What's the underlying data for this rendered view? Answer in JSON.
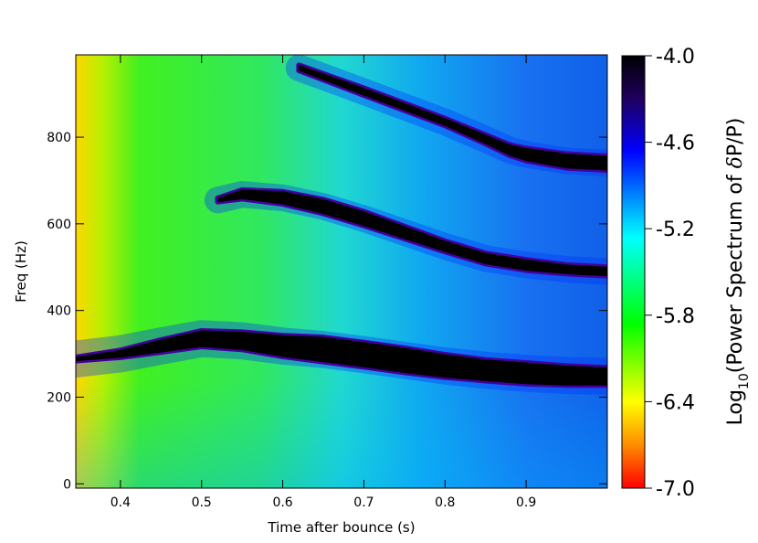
{
  "chart_data": {
    "type": "heatmap",
    "title": "",
    "xlabel": "Time after bounce (s)",
    "ylabel": "Freq (Hz)",
    "xlim": [
      0.345,
      1.0
    ],
    "ylim": [
      -10,
      990
    ],
    "x_ticks": [
      0.4,
      0.5,
      0.6,
      0.7,
      0.8,
      0.9
    ],
    "x_tick_labels": [
      "0.4",
      "0.5",
      "0.6",
      "0.7",
      "0.8",
      "0.9"
    ],
    "y_ticks": [
      0,
      200,
      400,
      600,
      800
    ],
    "y_tick_labels": [
      "0",
      "200",
      "400",
      "600",
      "800"
    ],
    "colorbar": {
      "label_parts": {
        "pre": "Log",
        "sub": "10",
        "post": "(Power Spectrum of ",
        "delta": "δ",
        "tail": "P/P)"
      },
      "range": [
        -7.0,
        -4.0
      ],
      "ticks": [
        -4.0,
        -4.6,
        -5.2,
        -5.8,
        -6.4,
        -7.0
      ],
      "tick_labels": [
        "-4.0",
        "-4.6",
        "-5.2",
        "-5.8",
        "-6.4",
        "-7.0"
      ],
      "colormap": [
        "#ff0000",
        "#ff8c00",
        "#ffff00",
        "#00ff00",
        "#00ffff",
        "#0000ff",
        "#200060",
        "#000000"
      ]
    },
    "bands": [
      {
        "name": "",
        "points": [
          [
            0.345,
            288
          ],
          [
            0.4,
            300
          ],
          [
            0.45,
            318
          ],
          [
            0.5,
            335
          ],
          [
            0.55,
            330
          ],
          [
            0.6,
            318
          ],
          [
            0.65,
            310
          ],
          [
            0.7,
            298
          ],
          [
            0.75,
            285
          ],
          [
            0.8,
            272
          ],
          [
            0.85,
            262
          ],
          [
            0.9,
            255
          ],
          [
            0.95,
            250
          ],
          [
            1.0,
            248
          ]
        ],
        "halfwidth_hz": [
          4,
          8,
          14,
          18,
          20,
          24,
          28,
          28,
          28,
          26,
          24,
          24,
          22,
          20
        ]
      },
      {
        "name": "",
        "points": [
          [
            0.52,
            655
          ],
          [
            0.55,
            668
          ],
          [
            0.6,
            660
          ],
          [
            0.65,
            640
          ],
          [
            0.7,
            612
          ],
          [
            0.75,
            580
          ],
          [
            0.8,
            548
          ],
          [
            0.85,
            520
          ],
          [
            0.9,
            505
          ],
          [
            0.95,
            495
          ],
          [
            1.0,
            490
          ]
        ],
        "halfwidth_hz": [
          4,
          10,
          14,
          16,
          16,
          14,
          12,
          12,
          12,
          10,
          10
        ]
      },
      {
        "name": "",
        "points": [
          [
            0.62,
            960
          ],
          [
            0.7,
            905
          ],
          [
            0.75,
            870
          ],
          [
            0.8,
            835
          ],
          [
            0.85,
            795
          ],
          [
            0.88,
            770
          ],
          [
            0.9,
            760
          ],
          [
            0.95,
            745
          ],
          [
            1.0,
            740
          ]
        ],
        "halfwidth_hz": [
          6,
          8,
          8,
          8,
          10,
          12,
          14,
          16,
          16
        ]
      }
    ],
    "background_description_values": {
      "low_time_level": -6.4,
      "high_time_level": -5.0
    }
  }
}
